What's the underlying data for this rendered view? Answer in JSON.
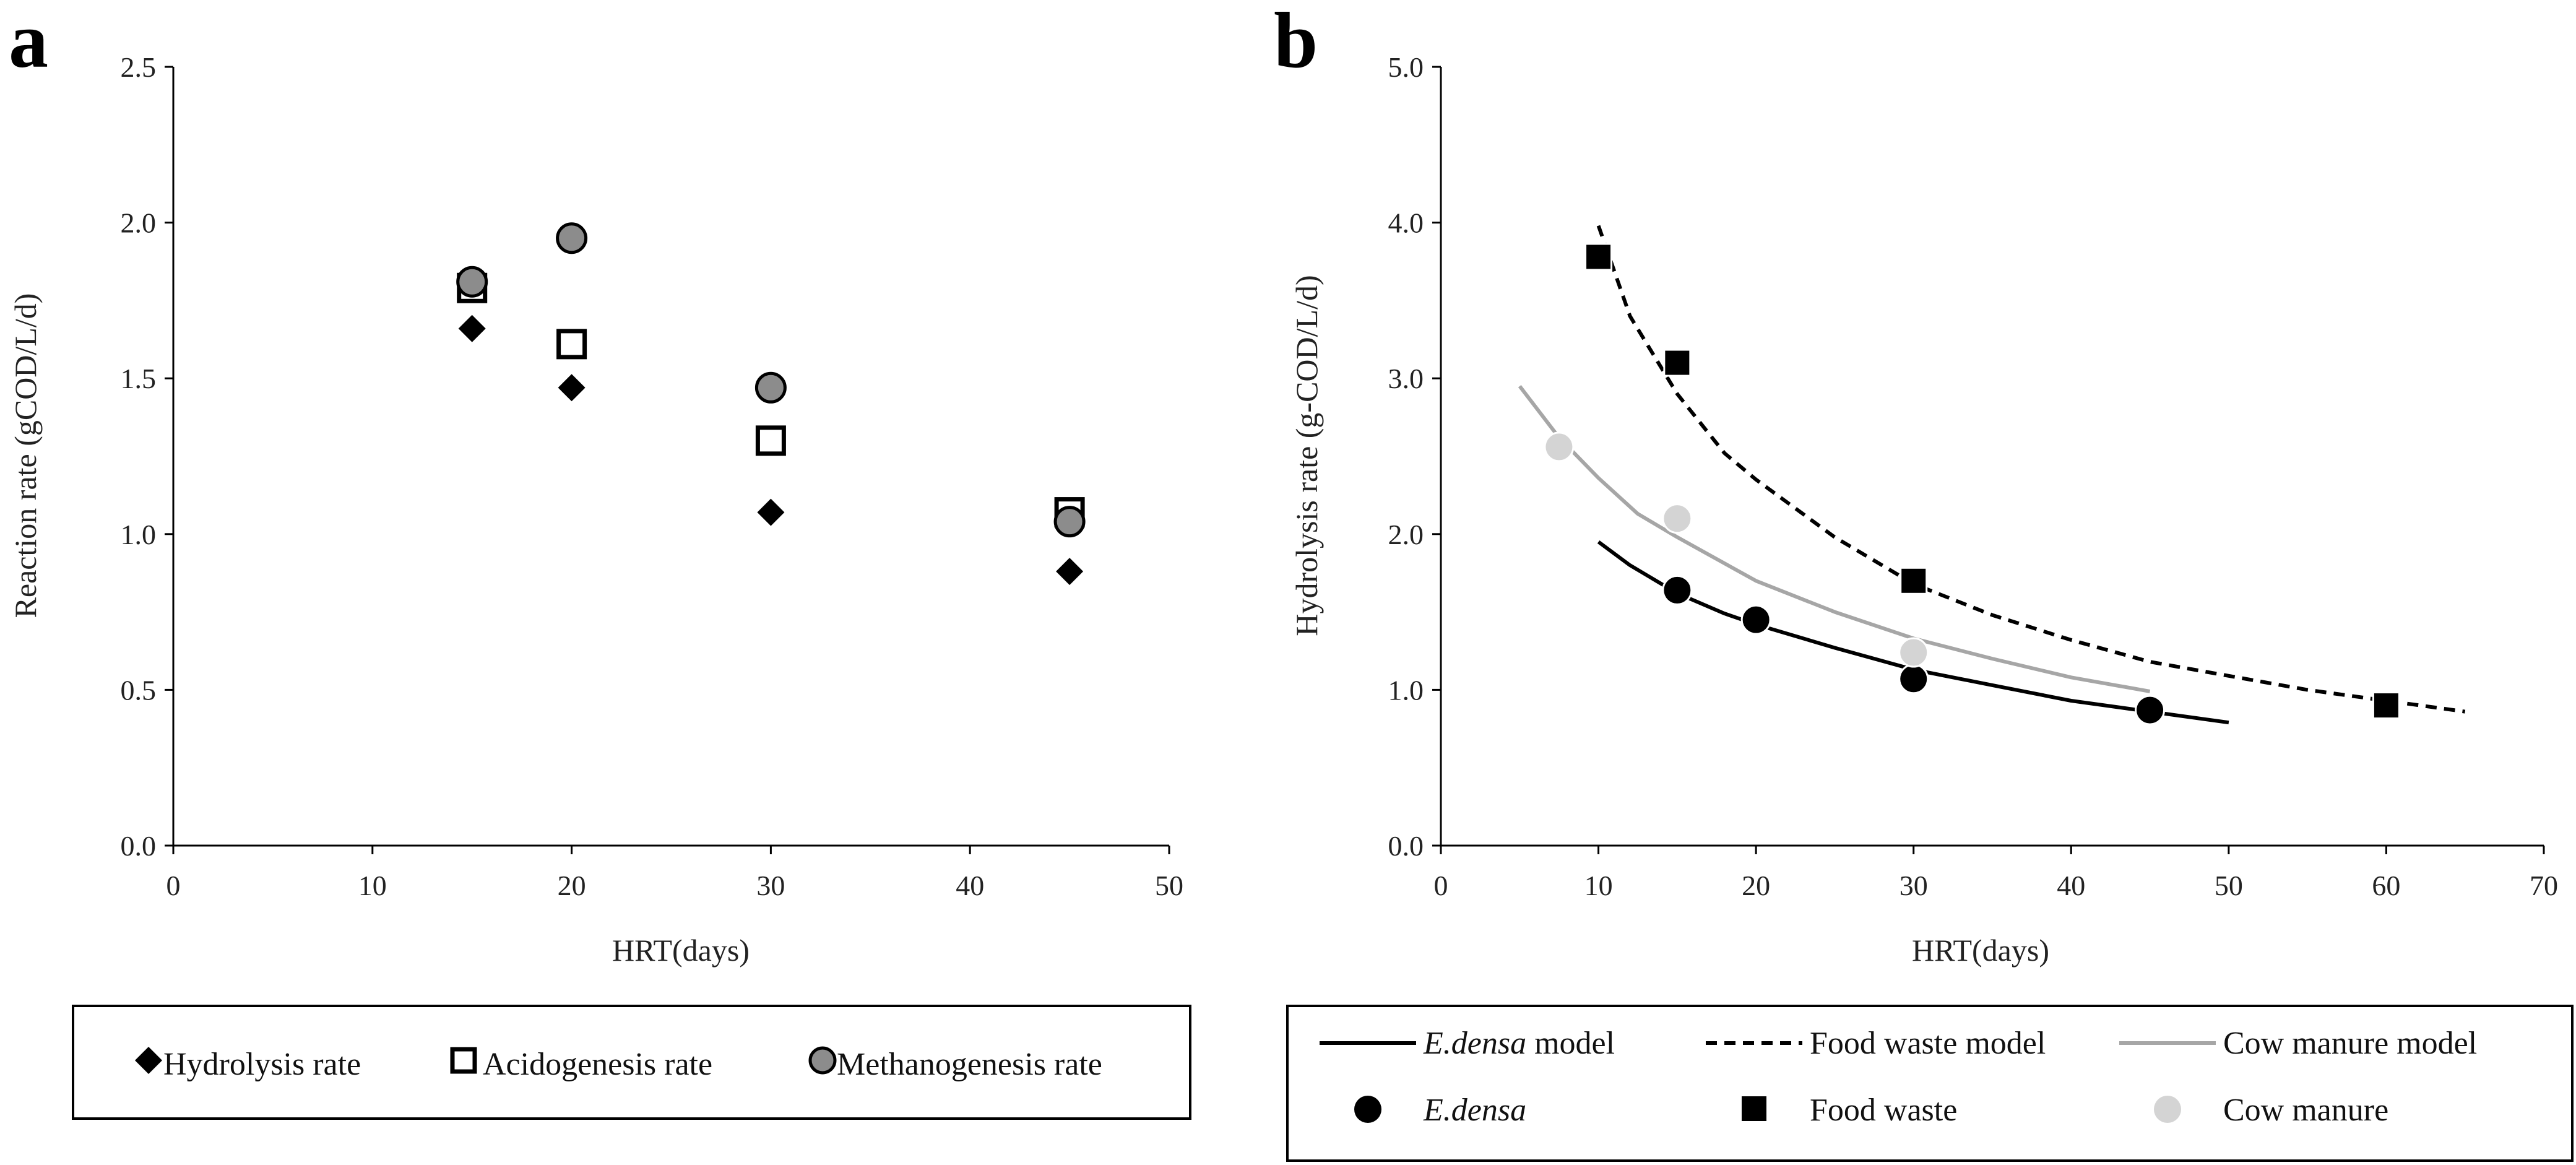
{
  "chart_data": [
    {
      "type": "scatter",
      "panel": "a",
      "title": "",
      "xlabel": "HRT(days)",
      "ylabel": "Reaction rate (gCOD/L/d)",
      "xlim": [
        0,
        50
      ],
      "ylim": [
        0.0,
        2.5
      ],
      "xticks": [
        "0",
        "10",
        "20",
        "30",
        "40",
        "50"
      ],
      "yticks": [
        "0.0",
        "0.5",
        "1.0",
        "1.5",
        "2.0",
        "2.5"
      ],
      "legend_position": "bottom",
      "series": [
        {
          "name": "Hydrolysis rate",
          "marker": "diamond",
          "color": "#000000",
          "x": [
            15,
            20,
            30,
            45
          ],
          "y": [
            1.66,
            1.47,
            1.07,
            0.88
          ]
        },
        {
          "name": "Acidogenesis rate",
          "marker": "square-open",
          "color": "#000000",
          "x": [
            15,
            20,
            30,
            45
          ],
          "y": [
            1.79,
            1.61,
            1.3,
            1.07
          ]
        },
        {
          "name": "Methanogenesis rate",
          "marker": "circle-gray",
          "color": "#8c8c8c",
          "x": [
            15,
            20,
            30,
            45
          ],
          "y": [
            1.81,
            1.95,
            1.47,
            1.04
          ]
        }
      ]
    },
    {
      "type": "line",
      "panel": "b",
      "title": "",
      "xlabel": "HRT(days)",
      "ylabel": "Hydrolysis rate (g-COD/L/d)",
      "xlim": [
        0,
        70
      ],
      "ylim": [
        0.0,
        5.0
      ],
      "xticks": [
        "0",
        "10",
        "20",
        "30",
        "40",
        "50",
        "60",
        "70"
      ],
      "yticks": [
        "0.0",
        "1.0",
        "2.0",
        "3.0",
        "4.0",
        "5.0"
      ],
      "legend_position": "bottom",
      "lines": [
        {
          "name_italic": "E.densa",
          "name_rest": " model",
          "style": "solid",
          "color": "#000000",
          "x": [
            10,
            12,
            15,
            18,
            20,
            25,
            30,
            35,
            40,
            45,
            50
          ],
          "y": [
            1.95,
            1.8,
            1.62,
            1.49,
            1.42,
            1.27,
            1.13,
            1.03,
            0.93,
            0.86,
            0.79
          ]
        },
        {
          "name_italic": "",
          "name_rest": "Food waste model",
          "style": "dashed",
          "color": "#000000",
          "x": [
            10,
            12,
            15,
            18,
            20,
            25,
            30,
            35,
            40,
            45,
            50,
            55,
            60,
            65
          ],
          "y": [
            3.98,
            3.4,
            2.9,
            2.52,
            2.35,
            1.98,
            1.68,
            1.48,
            1.32,
            1.18,
            1.09,
            1.0,
            0.93,
            0.86
          ]
        },
        {
          "name_italic": "",
          "name_rest": "Cow manure model",
          "style": "solid",
          "color": "#a6a6a6",
          "x": [
            5,
            7.5,
            10,
            12.5,
            15,
            20,
            25,
            30,
            35,
            40,
            45
          ],
          "y": [
            2.95,
            2.62,
            2.36,
            2.13,
            1.98,
            1.7,
            1.5,
            1.33,
            1.2,
            1.08,
            0.99
          ]
        }
      ],
      "points": [
        {
          "name_italic": "E.densa",
          "name_rest": "",
          "marker": "circle",
          "color": "#000000",
          "x": [
            15,
            20,
            30,
            45
          ],
          "y": [
            1.64,
            1.45,
            1.07,
            0.87
          ]
        },
        {
          "name_italic": "",
          "name_rest": "Food waste",
          "marker": "square",
          "color": "#000000",
          "x": [
            10,
            15,
            30,
            60
          ],
          "y": [
            3.78,
            3.1,
            1.7,
            0.9
          ]
        },
        {
          "name_italic": "",
          "name_rest": "Cow manure",
          "marker": "circle",
          "color": "#d4d4d4",
          "x": [
            7.5,
            15,
            30
          ],
          "y": [
            2.56,
            2.1,
            1.24
          ]
        }
      ]
    }
  ]
}
